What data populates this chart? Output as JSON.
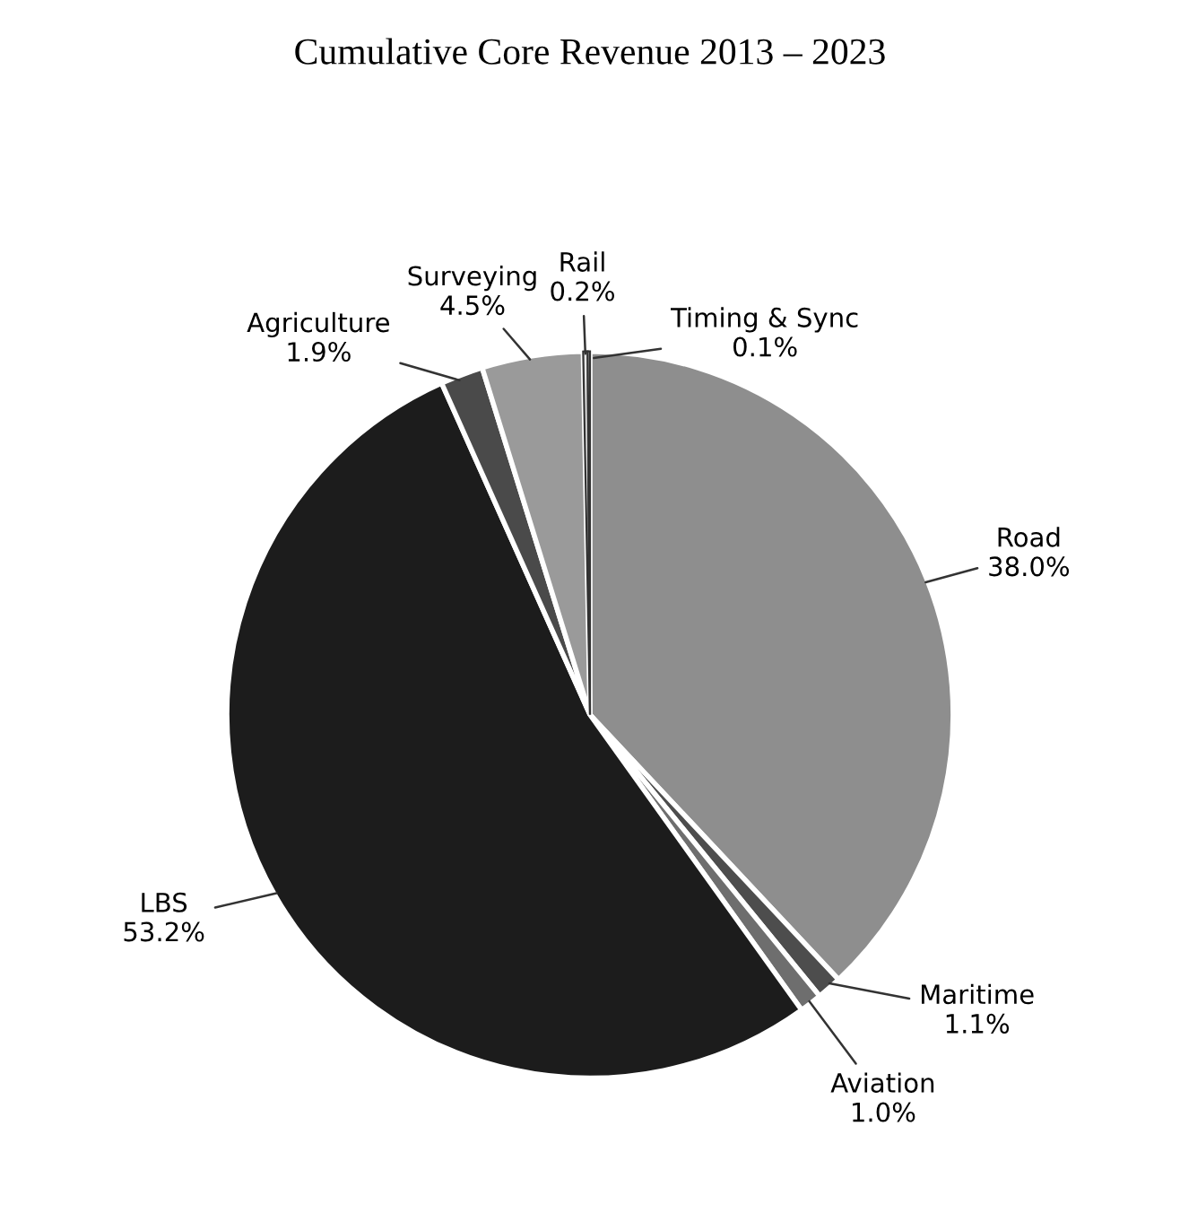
{
  "chart_data": {
    "type": "pie",
    "title": "Cumulative Core Revenue 2013 – 2023",
    "categories": [
      "Road",
      "Maritime",
      "Aviation",
      "LBS",
      "Agriculture",
      "Surveying",
      "Rail",
      "Timing & Sync"
    ],
    "values": [
      38.0,
      1.1,
      1.0,
      53.2,
      1.9,
      4.5,
      0.2,
      0.1
    ],
    "value_labels": [
      "38.0%",
      "1.1%",
      "1.0%",
      "53.2%",
      "1.9%",
      "4.5%",
      "0.2%",
      "0.1%"
    ],
    "colors": [
      "#8e8e8e",
      "#4d4d4d",
      "#6e6e6e",
      "#1c1c1c",
      "#4a4a4a",
      "#9a9a9a",
      "#e6e6e6",
      "#f5f5f5"
    ]
  }
}
